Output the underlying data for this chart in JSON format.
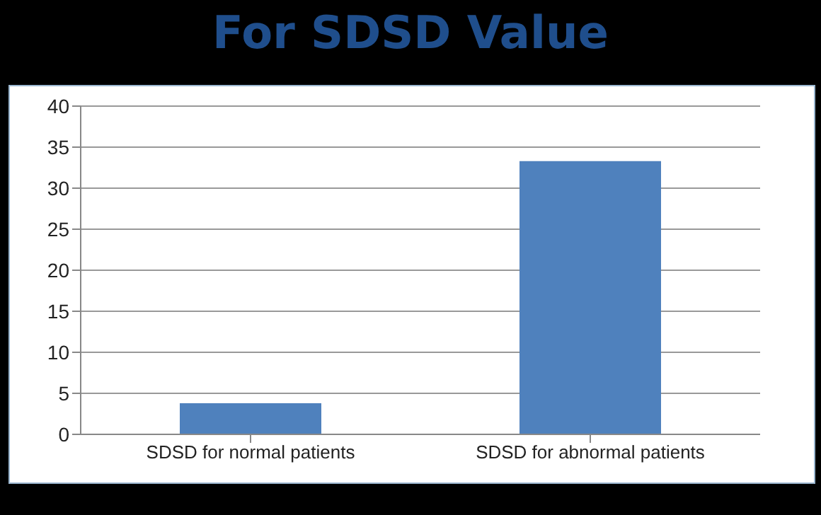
{
  "chart_data": {
    "type": "bar",
    "title": "For SDSD Value",
    "categories": [
      "SDSD for normal patients",
      "SDSD for abnormal patients"
    ],
    "values": [
      3.8,
      33.3
    ],
    "color": "#4f81bd",
    "ylim": [
      0,
      40
    ],
    "yticks": [
      0,
      5,
      10,
      15,
      20,
      25,
      30,
      35,
      40
    ],
    "grid": "y"
  }
}
